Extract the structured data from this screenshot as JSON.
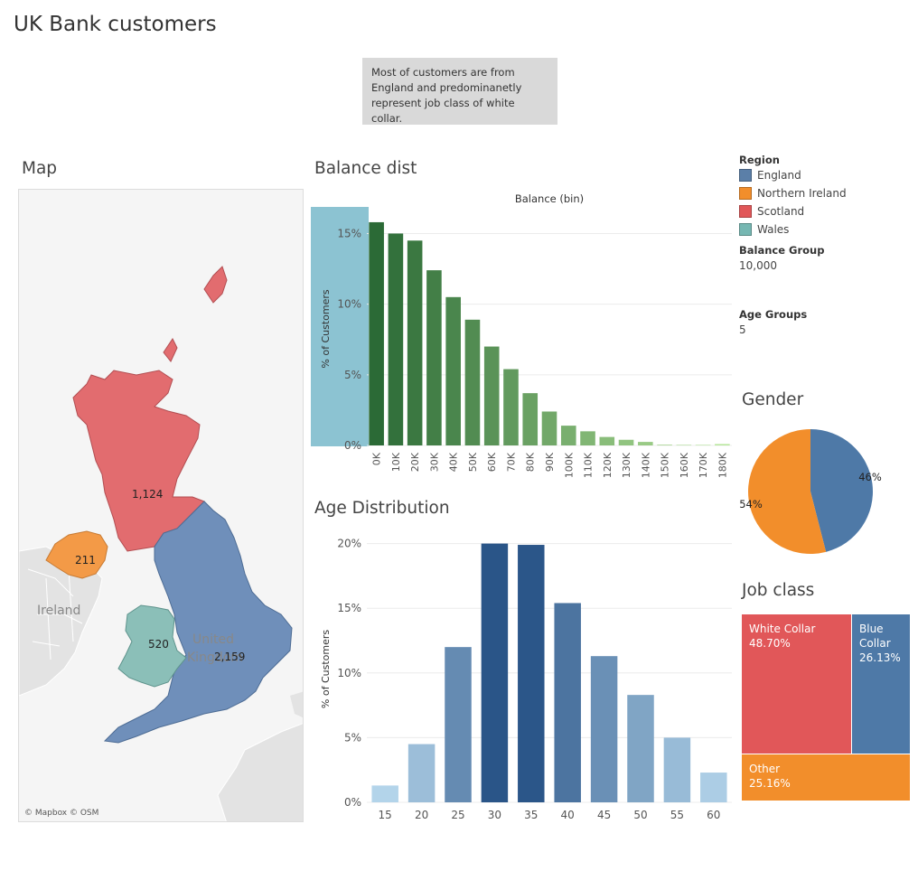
{
  "page": {
    "title": "UK Bank customers",
    "note": "Most of customers are from England and predominanetly represent job class of white collar."
  },
  "map": {
    "title": "Map",
    "credit": "© Mapbox © OSM",
    "place_labels": [
      "Ireland",
      "United",
      "Kingdom"
    ],
    "regions": [
      {
        "name": "England",
        "count": "2,159",
        "color": "#6f8fba"
      },
      {
        "name": "Northern Ireland",
        "count": "211",
        "color": "#f39a47"
      },
      {
        "name": "Scotland",
        "count": "1,124",
        "color": "#e26c6f"
      },
      {
        "name": "Wales",
        "count": "520",
        "color": "#8bbfb8"
      }
    ]
  },
  "legend": {
    "region_title": "Region",
    "items": [
      {
        "label": "England",
        "color": "#5b7fa8"
      },
      {
        "label": "Northern Ireland",
        "color": "#f28e2b"
      },
      {
        "label": "Scotland",
        "color": "#e15759"
      },
      {
        "label": "Wales",
        "color": "#76b7b2"
      }
    ],
    "balance_group_title": "Balance Group",
    "balance_group_value": "10,000",
    "age_groups_title": "Age Groups",
    "age_groups_value": "5"
  },
  "chart_data": [
    {
      "id": "balance",
      "type": "bar",
      "title": "Balance dist",
      "xlabel": "Balance (bin)",
      "ylabel": "% of Customers",
      "categories": [
        "0K",
        "10K",
        "20K",
        "30K",
        "40K",
        "50K",
        "60K",
        "70K",
        "80K",
        "90K",
        "100K",
        "110K",
        "120K",
        "130K",
        "140K",
        "150K",
        "160K",
        "170K",
        "180K"
      ],
      "values": [
        15.8,
        15.0,
        14.5,
        12.4,
        10.5,
        8.9,
        7.0,
        5.4,
        3.7,
        2.4,
        1.4,
        1.0,
        0.6,
        0.4,
        0.25,
        0.05,
        0.03,
        0.02,
        0.1
      ],
      "yticks": [
        "0%",
        "5%",
        "10%",
        "15%"
      ],
      "ylim": [
        0,
        16.5
      ],
      "highlight_band_color": "#8cc3d2"
    },
    {
      "id": "age",
      "type": "bar",
      "title": "Age Distribution",
      "ylabel": "% of Customers",
      "categories": [
        "15",
        "20",
        "25",
        "30",
        "35",
        "40",
        "45",
        "50",
        "55",
        "60"
      ],
      "values": [
        1.3,
        4.5,
        12.0,
        20.0,
        19.9,
        15.4,
        11.3,
        8.3,
        5.0,
        2.3
      ],
      "yticks": [
        "0%",
        "5%",
        "10%",
        "15%",
        "20%"
      ],
      "ylim": [
        0,
        20.6
      ]
    },
    {
      "id": "gender",
      "type": "pie",
      "title": "Gender",
      "slices": [
        {
          "label": "46%",
          "value": 46,
          "color": "#4e79a7"
        },
        {
          "label": "54%",
          "value": 54,
          "color": "#f28e2b"
        }
      ]
    },
    {
      "id": "job",
      "type": "treemap",
      "title": "Job class",
      "items": [
        {
          "name": "White Collar",
          "pct": "48.70%",
          "value": 48.7,
          "color": "#e15759"
        },
        {
          "name": "Blue Collar",
          "pct": "26.13%",
          "value": 26.13,
          "color": "#4e79a7"
        },
        {
          "name": "Other",
          "pct": "25.16%",
          "value": 25.16,
          "color": "#f28e2b"
        }
      ]
    }
  ]
}
